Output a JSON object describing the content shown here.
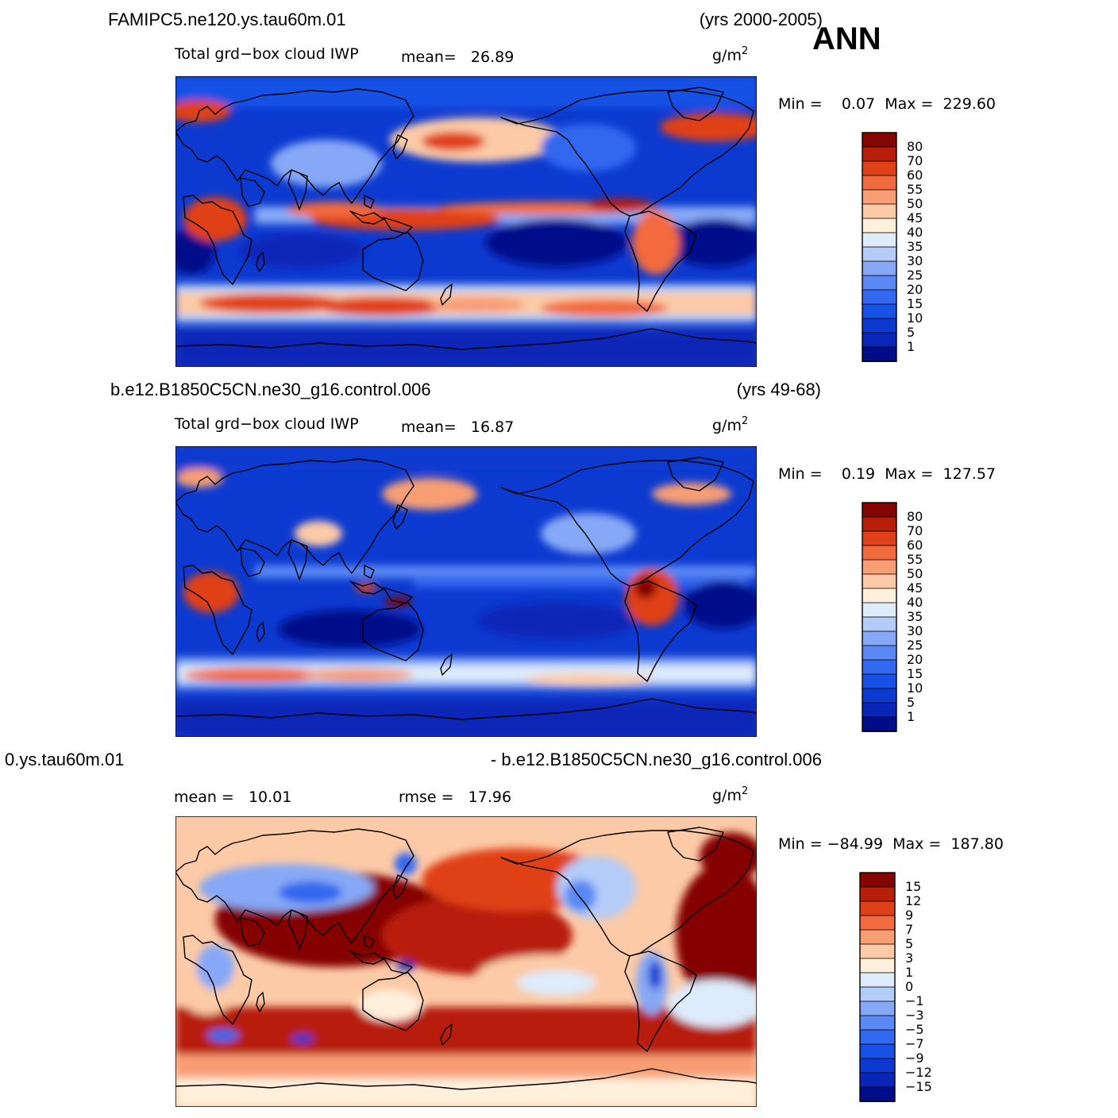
{
  "season": "ANN",
  "units_base": "g/m",
  "units_exp": "2",
  "panels": [
    {
      "case_title": "FAMIPC5.ne120.ys.tau60m.01",
      "years": "(yrs 2000-2005)",
      "left_label": "Total grd−box cloud IWP",
      "stat1": "mean=   26.89",
      "stat2": "",
      "minmax": "Min =    0.07  Max =  229.60",
      "levels": [
        "80",
        "70",
        "60",
        "55",
        "50",
        "45",
        "40",
        "35",
        "30",
        "25",
        "20",
        "15",
        "10",
        "5",
        "1"
      ],
      "palette": [
        "#000d8a",
        "#0a26b8",
        "#0c3ad0",
        "#1751e6",
        "#3368f0",
        "#5a88f4",
        "#86a8f6",
        "#b4ccf8",
        "#deebfa",
        "#fff0dc",
        "#fccaa6",
        "#f89e74",
        "#f26b3e",
        "#e04018",
        "#b81f08",
        "#850600"
      ]
    },
    {
      "case_title": "b.e12.B1850C5CN.ne30_g16.control.006",
      "years": "(yrs 49-68)",
      "left_label": "Total grd−box cloud IWP",
      "stat1": "mean=   16.87",
      "stat2": "",
      "minmax": "Min =    0.19  Max =  127.57",
      "levels": [
        "80",
        "70",
        "60",
        "55",
        "50",
        "45",
        "40",
        "35",
        "30",
        "25",
        "20",
        "15",
        "10",
        "5",
        "1"
      ],
      "palette": [
        "#000d8a",
        "#0a26b8",
        "#0c3ad0",
        "#1751e6",
        "#3368f0",
        "#5a88f4",
        "#86a8f6",
        "#b4ccf8",
        "#deebfa",
        "#fff0dc",
        "#fccaa6",
        "#f89e74",
        "#f26b3e",
        "#e04018",
        "#b81f08",
        "#850600"
      ]
    },
    {
      "case_title": "0.ys.tau60m.01",
      "case_title_right": "- b.e12.B1850C5CN.ne30_g16.control.006",
      "years": "",
      "left_label": "",
      "stat1": "mean =   10.01",
      "stat2": "rmse =   17.96",
      "minmax": "Min = −84.99  Max =  187.80",
      "levels": [
        "15",
        "12",
        "9",
        "7",
        "5",
        "3",
        "1",
        "0",
        "−1",
        "−3",
        "−5",
        "−7",
        "−9",
        "−12",
        "−15"
      ],
      "palette": [
        "#000d8a",
        "#0a26b8",
        "#0c3ad0",
        "#1751e6",
        "#3368f0",
        "#5a88f4",
        "#86a8f6",
        "#b4ccf8",
        "#deebfa",
        "#fff0dc",
        "#fccaa6",
        "#f89e74",
        "#f26b3e",
        "#e04018",
        "#b81f08",
        "#850600"
      ]
    }
  ]
}
